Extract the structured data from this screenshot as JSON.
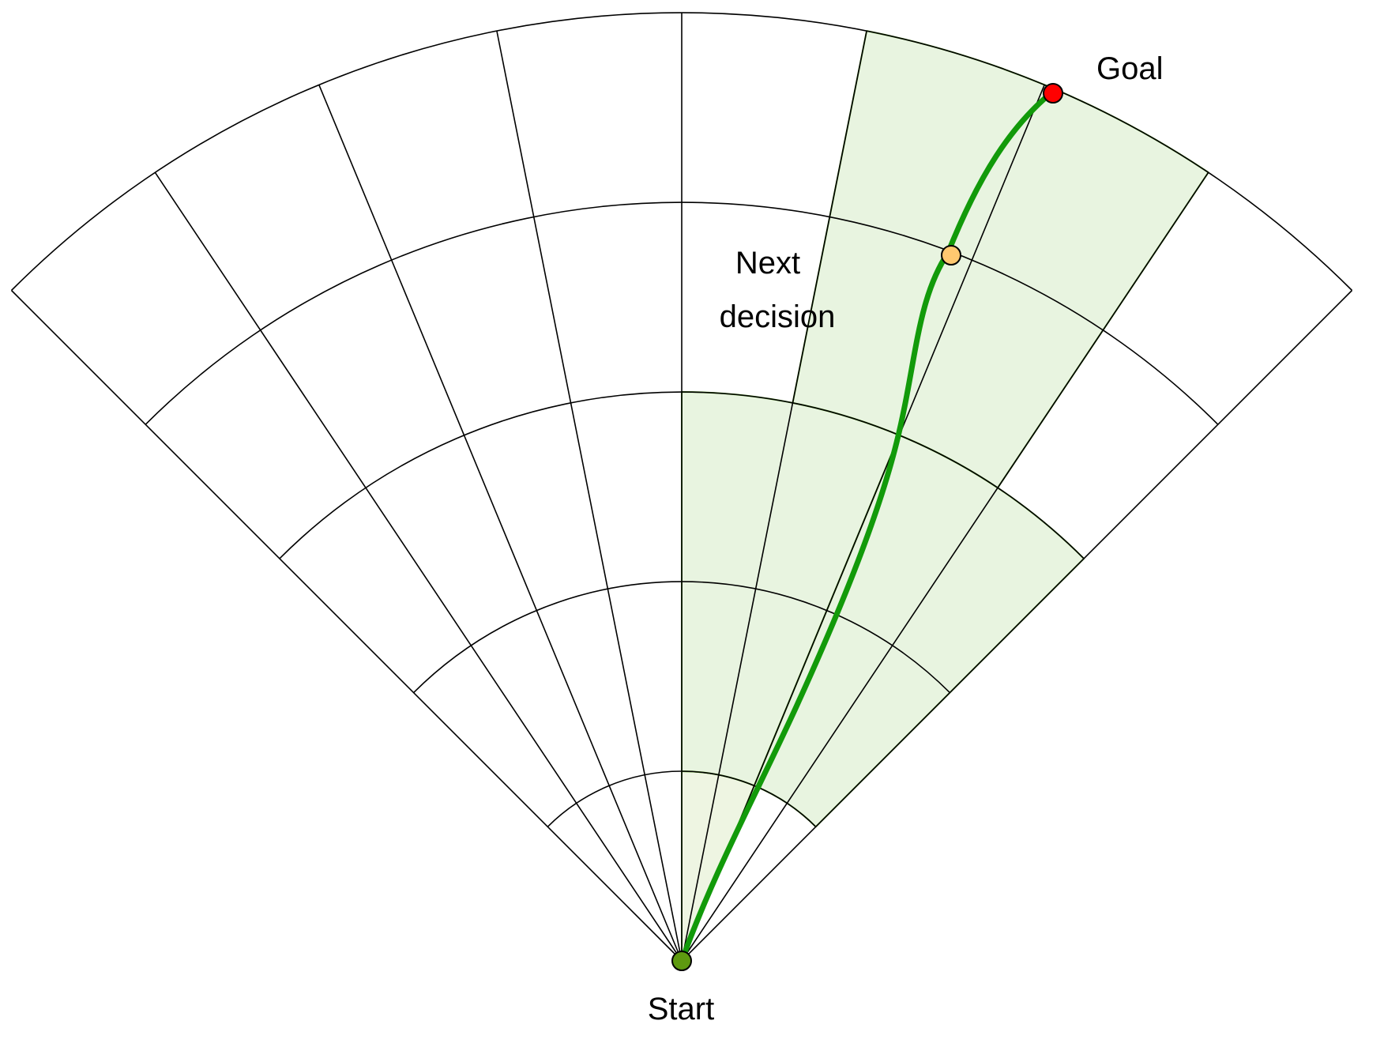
{
  "labels": {
    "goal": "Goal",
    "next_decision_line1": "Next",
    "next_decision_line2": "decision",
    "start": "Start"
  },
  "colors": {
    "grid": "#000000",
    "shade_fill": "#e8f4e0",
    "shade_inner_fill": "#eef5e2",
    "shade_stroke": "#5ea32a",
    "path": "#129a0a",
    "goal_marker": "#ff0000",
    "next_decision_marker": "#ffc870",
    "start_marker": "#5e9a10"
  },
  "structure": {
    "rings": 5,
    "sectors": 8
  }
}
